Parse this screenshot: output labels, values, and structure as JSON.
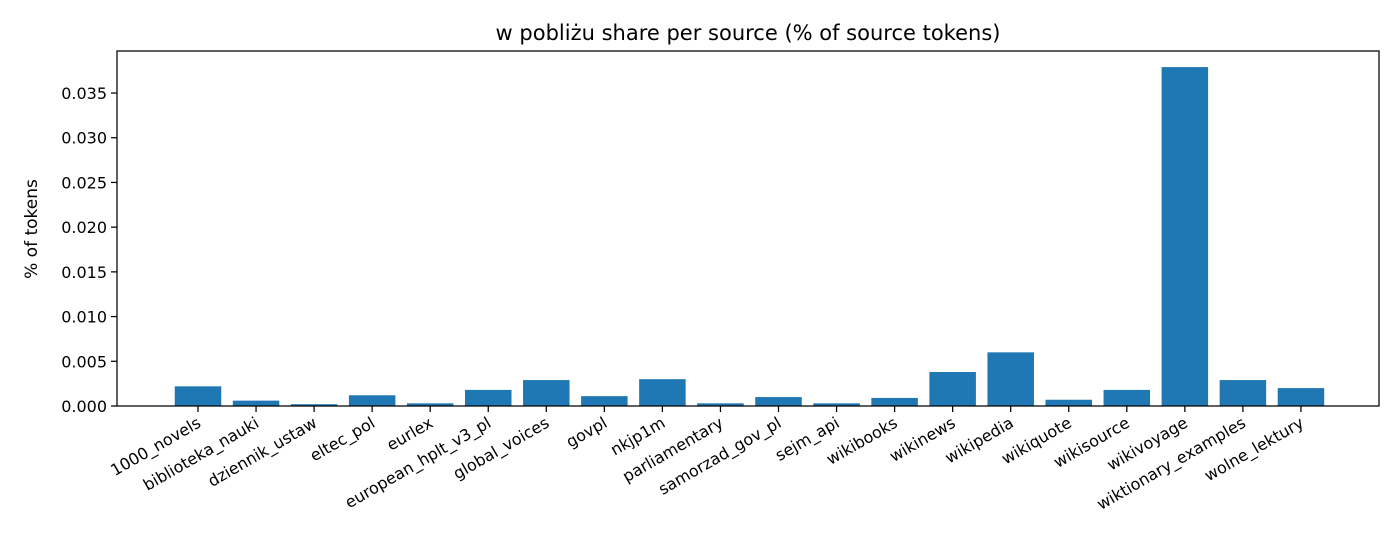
{
  "chart_data": {
    "type": "bar",
    "title": "w pobliżu share per source (% of source tokens)",
    "xlabel": "",
    "ylabel": "% of tokens",
    "ylim": [
      0,
      0.0397
    ],
    "yticks": [
      "0.000",
      "0.005",
      "0.010",
      "0.015",
      "0.020",
      "0.025",
      "0.030",
      "0.035"
    ],
    "grid": false,
    "bar_color": "#1f77b4",
    "categories": [
      "1000_novels",
      "biblioteka_nauki",
      "dziennik_ustaw",
      "eltec_pol",
      "eurlex",
      "european_hplt_v3_pl",
      "global_voices",
      "govpl",
      "nkjp1m",
      "parliamentary",
      "samorzad_gov_pl",
      "sejm_api",
      "wikibooks",
      "wikinews",
      "wikipedia",
      "wikiquote",
      "wikisource",
      "wikivoyage",
      "wiktionary_examples",
      "wolne_lektury"
    ],
    "values": [
      0.0022,
      0.0006,
      0.0002,
      0.0012,
      0.0003,
      0.0018,
      0.0029,
      0.0011,
      0.003,
      0.0003,
      0.001,
      0.0003,
      0.0009,
      0.0038,
      0.006,
      0.0007,
      0.0018,
      0.0379,
      0.0029,
      0.002
    ]
  }
}
